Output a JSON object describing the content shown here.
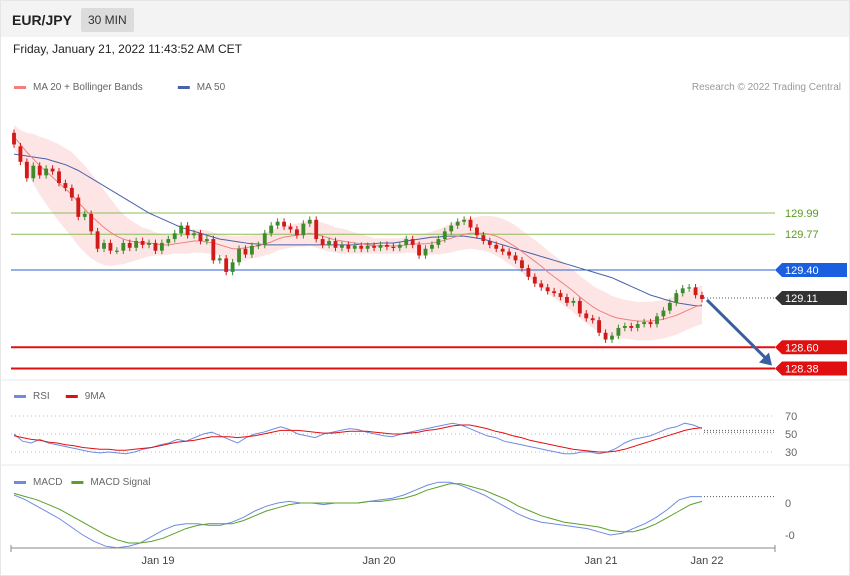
{
  "header": {
    "symbol": "EUR/JPY",
    "timeframe": "30 MIN",
    "datetime": "Friday, January 21, 2022 11:43:52 AM CET"
  },
  "colors": {
    "bull": "#3c8c2c",
    "bear": "#d11a1a",
    "ma20": "#f08080",
    "band_fill": "#fde0e0",
    "ma50": "#4a62a8",
    "level_green": "#8dbb5a",
    "level_blue": "#2f5fd0",
    "level_red": "#e01010",
    "arrow": "#3a5fa0",
    "rsi": "#6f8be0",
    "rsi_ma": "#e01010",
    "macd": "#6f8be0",
    "macd_signal": "#5aa02a",
    "label_dark": "#333333",
    "label_blue": "#1a5fe0",
    "label_red": "#e01010"
  },
  "chart_data": [
    {
      "type": "candlestick",
      "panel": "price",
      "legend": [
        {
          "name": "MA 20 + Bollinger Bands",
          "color": "#f08080"
        },
        {
          "name": "MA 50",
          "color": "#4a62a8"
        }
      ],
      "legend_placement": "top-left",
      "credit": "Research © 2022 Trading Central",
      "x_ticks": [
        "Jan 19",
        "Jan 20",
        "Jan 21",
        "Jan 22"
      ],
      "ylim": [
        128.38,
        130.85
      ],
      "levels": [
        {
          "value": 129.99,
          "label": "129.99",
          "style": "green-line"
        },
        {
          "value": 129.77,
          "label": "129.77",
          "style": "green-line"
        },
        {
          "value": 129.4,
          "label": "129.40",
          "style": "blue-box"
        },
        {
          "value": 129.11,
          "label": "129.11",
          "style": "current-price"
        },
        {
          "value": 128.6,
          "label": "128.60",
          "style": "red-box"
        },
        {
          "value": 128.38,
          "label": "128.38",
          "style": "red-box"
        }
      ],
      "forecast_arrow": {
        "from_value": 129.11,
        "to_value": 128.38,
        "direction": "down"
      },
      "close": [
        130.7,
        130.52,
        130.35,
        130.48,
        130.38,
        130.45,
        130.42,
        130.3,
        130.25,
        130.15,
        129.95,
        129.98,
        129.8,
        129.62,
        129.68,
        129.6,
        129.6,
        129.68,
        129.63,
        129.7,
        129.66,
        129.68,
        129.6,
        129.68,
        129.72,
        129.78,
        129.86,
        129.76,
        129.78,
        129.7,
        129.72,
        129.5,
        129.52,
        129.38,
        129.48,
        129.62,
        129.56,
        129.65,
        129.66,
        129.78,
        129.86,
        129.9,
        129.85,
        129.82,
        129.76,
        129.88,
        129.92,
        129.72,
        129.66,
        129.7,
        129.63,
        129.66,
        129.62,
        129.65,
        129.62,
        129.65,
        129.63,
        129.66,
        129.64,
        129.63,
        129.66,
        129.72,
        129.66,
        129.55,
        129.62,
        129.66,
        129.72,
        129.8,
        129.86,
        129.9,
        129.92,
        129.84,
        129.76,
        129.7,
        129.66,
        129.62,
        129.59,
        129.55,
        129.5,
        129.42,
        129.33,
        129.26,
        129.22,
        129.18,
        129.16,
        129.12,
        129.06,
        129.08,
        128.95,
        128.9,
        128.88,
        128.75,
        128.68,
        128.72,
        128.8,
        128.82,
        128.8,
        128.84,
        128.86,
        128.84,
        128.92,
        128.98,
        129.06,
        129.16,
        129.21,
        129.22,
        129.14,
        129.1
      ],
      "open": [
        130.82,
        130.68,
        130.52,
        130.35,
        130.48,
        130.38,
        130.45,
        130.42,
        130.3,
        130.25,
        130.15,
        129.95,
        129.98,
        129.8,
        129.62,
        129.68,
        129.6,
        129.6,
        129.68,
        129.63,
        129.7,
        129.66,
        129.68,
        129.6,
        129.68,
        129.72,
        129.78,
        129.86,
        129.76,
        129.78,
        129.7,
        129.72,
        129.5,
        129.52,
        129.38,
        129.48,
        129.62,
        129.56,
        129.65,
        129.66,
        129.78,
        129.86,
        129.9,
        129.85,
        129.82,
        129.76,
        129.88,
        129.92,
        129.72,
        129.66,
        129.7,
        129.63,
        129.66,
        129.62,
        129.65,
        129.62,
        129.65,
        129.63,
        129.66,
        129.64,
        129.63,
        129.66,
        129.72,
        129.66,
        129.55,
        129.62,
        129.66,
        129.72,
        129.8,
        129.86,
        129.9,
        129.92,
        129.84,
        129.76,
        129.7,
        129.66,
        129.62,
        129.59,
        129.55,
        129.5,
        129.42,
        129.33,
        129.26,
        129.22,
        129.18,
        129.16,
        129.12,
        129.06,
        129.08,
        128.95,
        128.9,
        128.88,
        128.75,
        128.68,
        128.72,
        128.8,
        128.82,
        128.8,
        128.84,
        128.86,
        128.84,
        128.92,
        128.98,
        129.06,
        129.16,
        129.21,
        129.22,
        129.14
      ],
      "ma20": [
        130.78,
        130.7,
        130.62,
        130.55,
        130.48,
        130.42,
        130.36,
        130.3,
        130.24,
        130.18,
        130.1,
        130.03,
        129.96,
        129.9,
        129.84,
        129.79,
        129.75,
        129.72,
        129.7,
        129.69,
        129.68,
        129.68,
        129.67,
        129.66,
        129.66,
        129.67,
        129.68,
        129.69,
        129.7,
        129.7,
        129.69,
        129.68,
        129.66,
        129.64,
        129.62,
        129.62,
        129.63,
        129.64,
        129.65,
        129.67,
        129.69,
        129.72,
        129.74,
        129.75,
        129.76,
        129.77,
        129.78,
        129.77,
        129.75,
        129.73,
        129.71,
        129.7,
        129.69,
        129.68,
        129.67,
        129.66,
        129.65,
        129.65,
        129.65,
        129.65,
        129.65,
        129.66,
        129.67,
        129.67,
        129.67,
        129.68,
        129.69,
        129.71,
        129.73,
        129.75,
        129.77,
        129.78,
        129.78,
        129.78,
        129.77,
        129.75,
        129.72,
        129.68,
        129.64,
        129.59,
        129.54,
        129.49,
        129.44,
        129.38,
        129.33,
        129.28,
        129.23,
        129.18,
        129.12,
        129.07,
        129.02,
        128.98,
        128.95,
        128.92,
        128.9,
        128.89,
        128.88,
        128.87,
        128.87,
        128.87,
        128.88,
        128.89,
        128.91,
        128.93,
        128.96,
        128.99,
        129.02,
        129.04
      ],
      "bb_width": [
        0.12,
        0.15,
        0.2,
        0.26,
        0.3,
        0.34,
        0.37,
        0.4,
        0.42,
        0.44,
        0.45,
        0.45,
        0.44,
        0.42,
        0.39,
        0.35,
        0.3,
        0.26,
        0.22,
        0.19,
        0.16,
        0.14,
        0.12,
        0.11,
        0.1,
        0.1,
        0.11,
        0.12,
        0.12,
        0.12,
        0.12,
        0.11,
        0.11,
        0.12,
        0.13,
        0.13,
        0.13,
        0.12,
        0.12,
        0.12,
        0.12,
        0.12,
        0.12,
        0.12,
        0.12,
        0.13,
        0.13,
        0.14,
        0.14,
        0.14,
        0.13,
        0.13,
        0.12,
        0.11,
        0.1,
        0.09,
        0.08,
        0.08,
        0.08,
        0.08,
        0.08,
        0.08,
        0.09,
        0.1,
        0.11,
        0.12,
        0.13,
        0.14,
        0.15,
        0.15,
        0.16,
        0.16,
        0.17,
        0.18,
        0.19,
        0.2,
        0.21,
        0.22,
        0.22,
        0.22,
        0.22,
        0.22,
        0.22,
        0.22,
        0.22,
        0.22,
        0.22,
        0.22,
        0.22,
        0.22,
        0.22,
        0.22,
        0.22,
        0.21,
        0.21,
        0.2,
        0.2,
        0.2,
        0.2,
        0.2,
        0.2,
        0.2,
        0.2,
        0.2,
        0.2,
        0.2,
        0.2,
        0.2
      ],
      "ma50": [
        130.6,
        130.59,
        130.58,
        130.57,
        130.56,
        130.55,
        130.53,
        130.51,
        130.49,
        130.46,
        130.43,
        130.39,
        130.35,
        130.31,
        130.27,
        130.23,
        130.19,
        130.15,
        130.11,
        130.07,
        130.03,
        129.99,
        129.96,
        129.93,
        129.9,
        129.87,
        129.84,
        129.82,
        129.8,
        129.78,
        129.76,
        129.74,
        129.72,
        129.71,
        129.7,
        129.69,
        129.68,
        129.67,
        129.67,
        129.66,
        129.66,
        129.66,
        129.66,
        129.66,
        129.66,
        129.66,
        129.66,
        129.66,
        129.66,
        129.66,
        129.66,
        129.66,
        129.66,
        129.66,
        129.67,
        129.67,
        129.67,
        129.68,
        129.68,
        129.68,
        129.69,
        129.7,
        129.71,
        129.72,
        129.73,
        129.74,
        129.74,
        129.75,
        129.75,
        129.75,
        129.75,
        129.74,
        129.73,
        129.72,
        129.7,
        129.68,
        129.66,
        129.64,
        129.62,
        129.6,
        129.58,
        129.56,
        129.54,
        129.52,
        129.5,
        129.48,
        129.46,
        129.44,
        129.42,
        129.4,
        129.38,
        129.36,
        129.34,
        129.32,
        129.29,
        129.26,
        129.23,
        129.2,
        129.17,
        129.14,
        129.12,
        129.1,
        129.08,
        129.06,
        129.05,
        129.04,
        129.03,
        129.03
      ]
    },
    {
      "type": "line",
      "panel": "rsi",
      "legend": [
        {
          "name": "RSI",
          "color": "#6f8be0"
        },
        {
          "name": "9MA",
          "color": "#e01010"
        }
      ],
      "y_ticks": [
        "70",
        "50",
        "30"
      ],
      "ylim": [
        20,
        80
      ],
      "series": [
        {
          "name": "RSI",
          "values": [
            50,
            42,
            40,
            44,
            40,
            38,
            36,
            34,
            32,
            30,
            29,
            30,
            29,
            28,
            30,
            33,
            35,
            38,
            40,
            44,
            42,
            46,
            50,
            52,
            48,
            44,
            40,
            46,
            50,
            52,
            55,
            58,
            55,
            50,
            48,
            46,
            50,
            52,
            54,
            56,
            55,
            52,
            50,
            48,
            47,
            50,
            52,
            54,
            56,
            58,
            60,
            62,
            60,
            56,
            52,
            48,
            46,
            42,
            40,
            38,
            36,
            34,
            32,
            30,
            28,
            28,
            30,
            30,
            28,
            30,
            34,
            40,
            44,
            46,
            48,
            52,
            56,
            58,
            62,
            60,
            56
          ],
          "x_from": 0,
          "x_to": 106
        },
        {
          "name": "9MA",
          "values": [
            48,
            46,
            44,
            43,
            41,
            40,
            38,
            37,
            35,
            34,
            33,
            33,
            32,
            32,
            33,
            34,
            35,
            37,
            39,
            41,
            42,
            43,
            45,
            47,
            47,
            47,
            46,
            47,
            48,
            50,
            52,
            54,
            54,
            54,
            53,
            52,
            51,
            51,
            52,
            53,
            53,
            53,
            52,
            51,
            50,
            50,
            51,
            52,
            54,
            55,
            57,
            59,
            60,
            60,
            58,
            56,
            53,
            51,
            48,
            46,
            43,
            41,
            39,
            37,
            35,
            33,
            32,
            31,
            30,
            30,
            31,
            33,
            36,
            39,
            42,
            45,
            48,
            51,
            54,
            56,
            57
          ],
          "x_from": 0,
          "x_to": 106
        }
      ]
    },
    {
      "type": "line",
      "panel": "macd",
      "legend": [
        {
          "name": "MACD",
          "color": "#6f8be0"
        },
        {
          "name": "MACD Signal",
          "color": "#5aa02a"
        }
      ],
      "y_ticks": [
        "0",
        "-0"
      ],
      "ylim": [
        -0.3,
        0.2
      ],
      "series": [
        {
          "name": "MACD",
          "values": [
            0.05,
            0.02,
            -0.02,
            -0.06,
            -0.1,
            -0.15,
            -0.2,
            -0.24,
            -0.27,
            -0.28,
            -0.27,
            -0.25,
            -0.21,
            -0.17,
            -0.14,
            -0.13,
            -0.13,
            -0.14,
            -0.14,
            -0.12,
            -0.09,
            -0.05,
            -0.02,
            0.0,
            0.01,
            0.0,
            0.0,
            -0.01,
            0.0,
            0.0,
            0.0,
            0.01,
            0.02,
            0.03,
            0.05,
            0.08,
            0.11,
            0.13,
            0.13,
            0.11,
            0.08,
            0.05,
            0.01,
            -0.03,
            -0.07,
            -0.1,
            -0.12,
            -0.13,
            -0.14,
            -0.15,
            -0.16,
            -0.18,
            -0.2,
            -0.19,
            -0.16,
            -0.13,
            -0.09,
            -0.04,
            0.02,
            0.04,
            0.04
          ],
          "x_from": 0,
          "x_to": 106
        },
        {
          "name": "MACD Signal",
          "values": [
            0.06,
            0.04,
            0.02,
            -0.01,
            -0.04,
            -0.08,
            -0.12,
            -0.16,
            -0.2,
            -0.23,
            -0.25,
            -0.25,
            -0.24,
            -0.22,
            -0.19,
            -0.16,
            -0.14,
            -0.13,
            -0.13,
            -0.13,
            -0.11,
            -0.08,
            -0.05,
            -0.03,
            -0.01,
            0.0,
            0.0,
            0.0,
            0.0,
            0.0,
            0.0,
            0.01,
            0.01,
            0.02,
            0.03,
            0.05,
            0.08,
            0.1,
            0.12,
            0.12,
            0.1,
            0.08,
            0.05,
            0.02,
            -0.02,
            -0.05,
            -0.08,
            -0.1,
            -0.12,
            -0.13,
            -0.14,
            -0.15,
            -0.17,
            -0.18,
            -0.18,
            -0.16,
            -0.13,
            -0.09,
            -0.05,
            -0.01,
            0.01
          ],
          "x_from": 0,
          "x_to": 106
        }
      ]
    }
  ]
}
